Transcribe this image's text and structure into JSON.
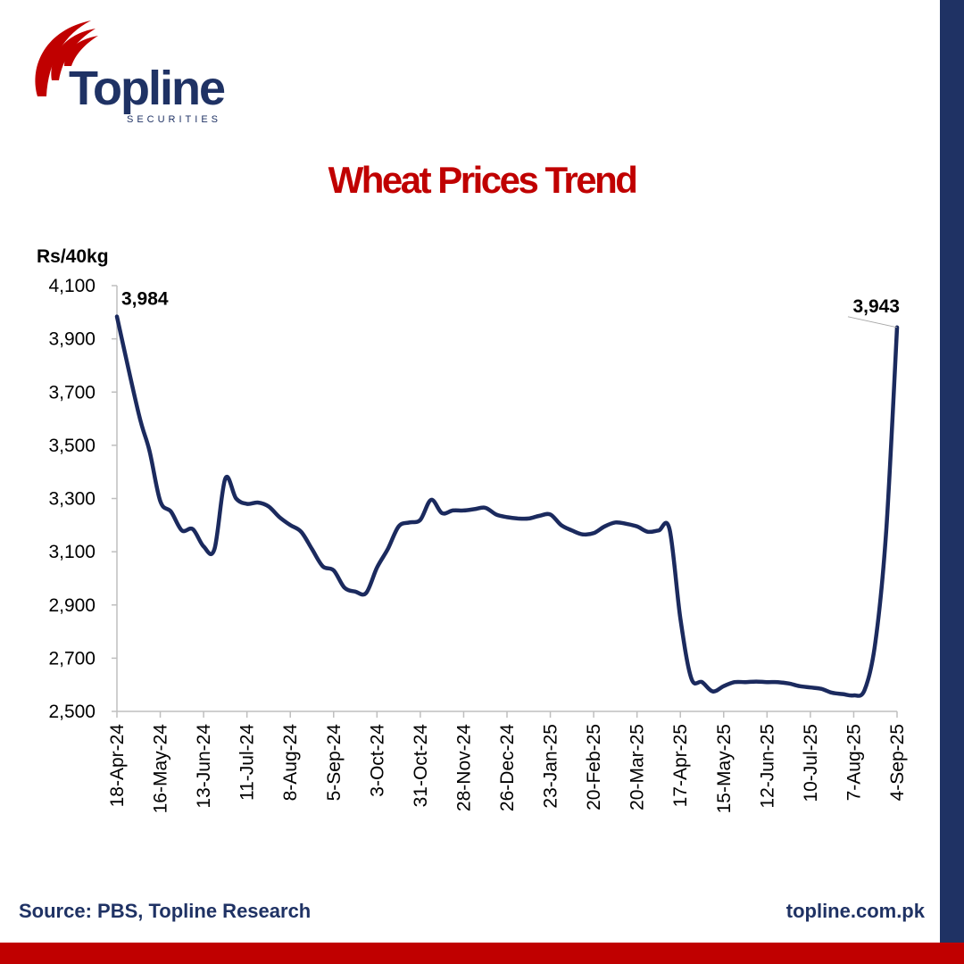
{
  "brand": {
    "name": "Topline",
    "sub": "SECURITIES"
  },
  "colors": {
    "navy": "#1f3264",
    "red": "#c00000",
    "line": "#1b2a5e"
  },
  "chart_data": {
    "type": "line",
    "title": "Wheat Prices Trend",
    "ylabel": "Rs/40kg",
    "xlabel": "",
    "ylim": [
      2500,
      4100
    ],
    "yticks": [
      "2,500",
      "2,700",
      "2,900",
      "3,100",
      "3,300",
      "3,500",
      "3,700",
      "3,900",
      "4,100"
    ],
    "ytick_values": [
      2500,
      2700,
      2900,
      3100,
      3300,
      3500,
      3700,
      3900,
      4100
    ],
    "xticks": [
      "18-Apr-24",
      "16-May-24",
      "13-Jun-24",
      "11-Jul-24",
      "8-Aug-24",
      "5-Sep-24",
      "3-Oct-24",
      "31-Oct-24",
      "28-Nov-24",
      "26-Dec-24",
      "23-Jan-25",
      "20-Feb-25",
      "20-Mar-25",
      "17-Apr-25",
      "15-May-25",
      "12-Jun-25",
      "10-Jul-25",
      "7-Aug-25",
      "4-Sep-25"
    ],
    "grid": false,
    "series": [
      {
        "x": [
          "18-Apr-24",
          "2-May-24",
          "9-May-24",
          "16-May-24",
          "23-May-24",
          "30-May-24",
          "6-Jun-24",
          "13-Jun-24",
          "20-Jun-24",
          "27-Jun-24",
          "4-Jul-24",
          "11-Jul-24",
          "18-Jul-24",
          "25-Jul-24",
          "1-Aug-24",
          "8-Aug-24",
          "15-Aug-24",
          "22-Aug-24",
          "29-Aug-24",
          "5-Sep-24",
          "12-Sep-24",
          "19-Sep-24",
          "26-Sep-24",
          "3-Oct-24",
          "10-Oct-24",
          "17-Oct-24",
          "24-Oct-24",
          "31-Oct-24",
          "7-Nov-24",
          "14-Nov-24",
          "21-Nov-24",
          "28-Nov-24",
          "5-Dec-24",
          "12-Dec-24",
          "19-Dec-24",
          "26-Dec-24",
          "2-Jan-25",
          "9-Jan-25",
          "16-Jan-25",
          "23-Jan-25",
          "30-Jan-25",
          "6-Feb-25",
          "13-Feb-25",
          "20-Feb-25",
          "27-Feb-25",
          "6-Mar-25",
          "13-Mar-25",
          "20-Mar-25",
          "27-Mar-25",
          "3-Apr-25",
          "10-Apr-25",
          "17-Apr-25",
          "24-Apr-25",
          "1-May-25",
          "8-May-25",
          "15-May-25",
          "22-May-25",
          "29-May-25",
          "5-Jun-25",
          "12-Jun-25",
          "19-Jun-25",
          "26-Jun-25",
          "3-Jul-25",
          "10-Jul-25",
          "17-Jul-25",
          "24-Jul-25",
          "31-Jul-25",
          "7-Aug-25",
          "14-Aug-25",
          "21-Aug-25",
          "28-Aug-25",
          "4-Sep-25"
        ],
        "values": [
          3984,
          3620,
          3480,
          3290,
          3250,
          3180,
          3185,
          3120,
          3110,
          3375,
          3300,
          3280,
          3285,
          3270,
          3230,
          3200,
          3175,
          3110,
          3045,
          3030,
          2965,
          2950,
          2945,
          3040,
          3110,
          3195,
          3210,
          3220,
          3295,
          3245,
          3255,
          3255,
          3260,
          3265,
          3240,
          3230,
          3225,
          3225,
          3235,
          3240,
          3200,
          3180,
          3165,
          3170,
          3195,
          3210,
          3205,
          3195,
          3175,
          3180,
          3185,
          2850,
          2625,
          2610,
          2575,
          2595,
          2610,
          2610,
          2612,
          2610,
          2610,
          2605,
          2595,
          2590,
          2585,
          2570,
          2565,
          2560,
          2580,
          2760,
          3180,
          3943
        ]
      }
    ],
    "annotations": [
      {
        "label": "3,984",
        "x": "18-Apr-24",
        "y": 3984
      },
      {
        "label": "3,943",
        "x": "4-Sep-25",
        "y": 3943
      }
    ]
  },
  "footer": {
    "source": "Source: PBS, Topline Research",
    "website": "topline.com.pk"
  }
}
